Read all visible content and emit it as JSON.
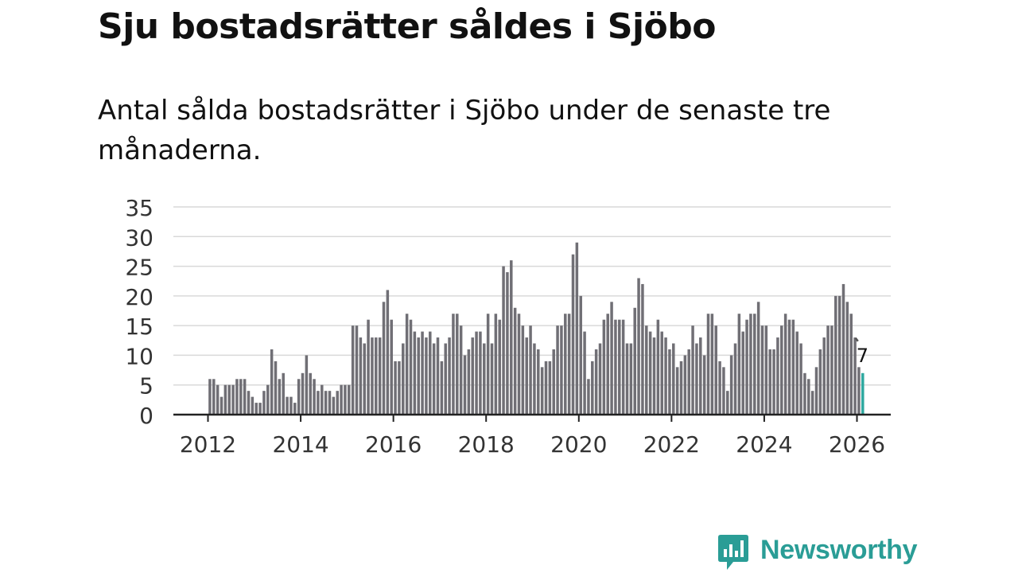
{
  "title": "Sju bostadsrätter såldes i Sjöbo",
  "subtitle": "Antal sålda bostadsrätter i Sjöbo under de senaste tre månaderna.",
  "brand": {
    "name": "Newsworthy",
    "icon": "newsworthy-logo-icon",
    "color": "#2a9d96"
  },
  "colors": {
    "bar": "#706f75",
    "highlight": "#2fa9a0",
    "grid": "#d9d9d9",
    "axis": "#222222"
  },
  "chart_data": {
    "type": "bar",
    "title": "Sju bostadsrätter såldes i Sjöbo",
    "xlabel": "",
    "ylabel": "",
    "ylim": [
      0,
      35
    ],
    "yticks": [
      "0",
      "5",
      "10",
      "15",
      "20",
      "25",
      "30",
      "35"
    ],
    "xticks": [
      "2012",
      "2014",
      "2016",
      "2018",
      "2020",
      "2022",
      "2024",
      "2026"
    ],
    "grid": true,
    "start": "2012-01",
    "frequency": "monthly",
    "values": [
      6,
      6,
      5,
      3,
      5,
      5,
      5,
      6,
      6,
      6,
      4,
      3,
      2,
      2,
      4,
      5,
      11,
      9,
      6,
      7,
      3,
      3,
      2,
      6,
      7,
      10,
      7,
      6,
      4,
      5,
      4,
      4,
      3,
      4,
      5,
      5,
      5,
      15,
      15,
      13,
      12,
      16,
      13,
      13,
      13,
      19,
      21,
      16,
      9,
      9,
      12,
      17,
      16,
      14,
      13,
      14,
      13,
      14,
      12,
      13,
      9,
      12,
      13,
      17,
      17,
      15,
      10,
      11,
      13,
      14,
      14,
      12,
      17,
      12,
      17,
      16,
      25,
      24,
      26,
      18,
      17,
      15,
      13,
      15,
      12,
      11,
      8,
      9,
      9,
      11,
      15,
      15,
      17,
      17,
      27,
      29,
      20,
      14,
      6,
      9,
      11,
      12,
      16,
      17,
      19,
      16,
      16,
      16,
      12,
      12,
      18,
      23,
      22,
      15,
      14,
      13,
      16,
      14,
      13,
      11,
      12,
      8,
      9,
      10,
      11,
      15,
      12,
      13,
      10,
      17,
      17,
      15,
      9,
      8,
      4,
      10,
      12,
      17,
      14,
      16,
      17,
      17,
      19,
      15,
      15,
      11,
      11,
      13,
      15,
      17,
      16,
      16,
      14,
      12,
      7,
      6,
      4,
      8,
      11,
      13,
      15,
      15,
      20,
      20,
      22,
      19,
      17,
      13,
      8,
      7
    ],
    "highlight_last": true,
    "annotation": "7"
  }
}
